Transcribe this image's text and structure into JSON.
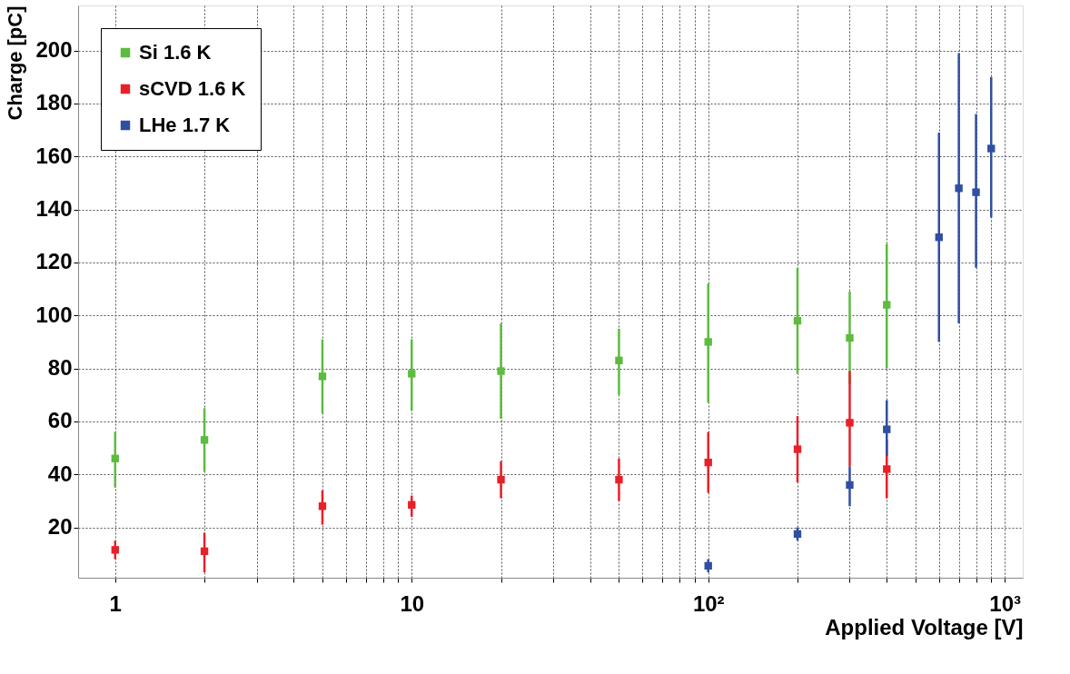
{
  "chart_data": {
    "type": "scatter",
    "xlabel": "Applied Voltage [V]",
    "ylabel": "Charge [pC]",
    "log": "x",
    "grid": true,
    "legend": "top left",
    "marker": "square",
    "xlim": [
      0.75,
      1150
    ],
    "ylim": [
      1,
      217
    ],
    "xticks": [
      1,
      {
        "value": 2,
        "label": null
      },
      {
        "value": 3,
        "label": null
      },
      {
        "value": 4,
        "label": null
      },
      {
        "value": 5,
        "label": null
      },
      {
        "value": 6,
        "label": null
      },
      {
        "value": 7,
        "label": null
      },
      {
        "value": 8,
        "label": null
      },
      {
        "value": 9,
        "label": null
      },
      10,
      {
        "value": 20,
        "label": null
      },
      {
        "value": 30,
        "label": null
      },
      {
        "value": 40,
        "label": null
      },
      {
        "value": 50,
        "label": null
      },
      {
        "value": 60,
        "label": null
      },
      {
        "value": 70,
        "label": null
      },
      {
        "value": 80,
        "label": null
      },
      {
        "value": 90,
        "label": null
      },
      {
        "value": 100,
        "label": "10²"
      },
      {
        "value": 200,
        "label": null
      },
      {
        "value": 300,
        "label": null
      },
      {
        "value": 400,
        "label": null
      },
      {
        "value": 500,
        "label": null
      },
      {
        "value": 600,
        "label": null
      },
      {
        "value": 700,
        "label": null
      },
      {
        "value": 800,
        "label": null
      },
      {
        "value": 900,
        "label": null
      },
      {
        "value": 1000,
        "label": "10³"
      }
    ],
    "yticks": [
      20,
      40,
      60,
      80,
      100,
      120,
      140,
      160,
      180,
      200
    ],
    "series": [
      {
        "name": "Si 1.6 K",
        "color": "#5dbb3f",
        "x": [
          1,
          2,
          5,
          10,
          20,
          50,
          100,
          200,
          300,
          400
        ],
        "values": [
          46,
          53,
          77,
          78,
          79,
          83,
          90,
          98,
          91.5,
          104
        ],
        "errors": [
          [
            35,
            56
          ],
          [
            41,
            65
          ],
          [
            63,
            91
          ],
          [
            64,
            91
          ],
          [
            61,
            97
          ],
          [
            70,
            95
          ],
          [
            67,
            112
          ],
          [
            78,
            118
          ],
          [
            74,
            109
          ],
          [
            80,
            127
          ]
        ]
      },
      {
        "name": "sCVD 1.6 K",
        "color": "#e8202a",
        "x": [
          1,
          2,
          5,
          10,
          20,
          50,
          100,
          200,
          300,
          400
        ],
        "values": [
          11.5,
          11,
          28,
          28.5,
          38,
          38,
          44.5,
          49.5,
          59.5,
          42
        ],
        "errors": [
          [
            8,
            15
          ],
          [
            3,
            18
          ],
          [
            21,
            34
          ],
          [
            24,
            32
          ],
          [
            31,
            45
          ],
          [
            30,
            46
          ],
          [
            33,
            56
          ],
          [
            37,
            62
          ],
          [
            43,
            79
          ],
          [
            31,
            53
          ]
        ]
      },
      {
        "name": "LHe 1.7 K",
        "color": "#2f4fa3",
        "x": [
          100,
          200,
          300,
          400,
          600,
          700,
          800,
          900
        ],
        "values": [
          5.5,
          17.5,
          36,
          57,
          129.5,
          148,
          146.5,
          163
        ],
        "errors": [
          [
            3,
            8
          ],
          [
            15,
            20
          ],
          [
            28,
            43
          ],
          [
            47,
            68
          ],
          [
            90,
            169
          ],
          [
            97,
            199
          ],
          [
            118,
            176
          ],
          [
            137,
            190
          ]
        ]
      }
    ]
  }
}
